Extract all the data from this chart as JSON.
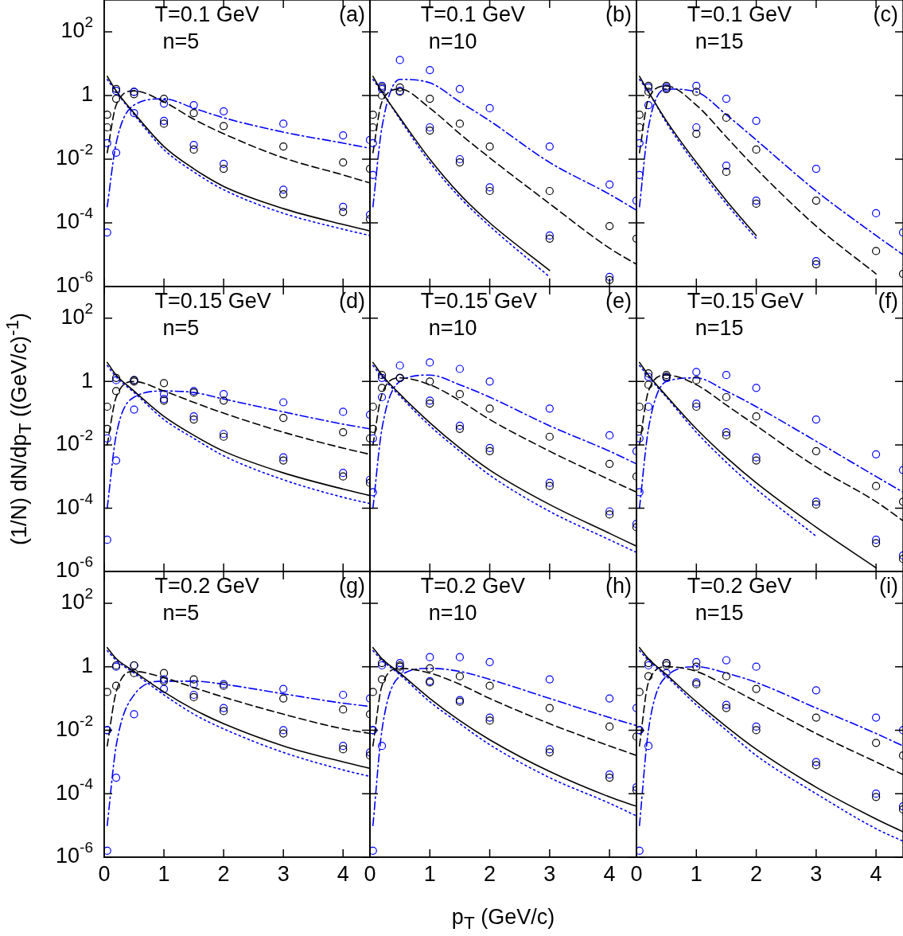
{
  "chart_data": [
    {
      "type": "line",
      "annotations": [
        "T=0.1 GeV",
        "(a)",
        "n=5"
      ],
      "x": [
        0.05,
        0.2,
        0.5,
        1,
        1.5,
        2,
        3,
        4,
        4.45
      ],
      "xlim": [
        0,
        4.45
      ],
      "xticks": [
        0,
        1,
        2,
        3,
        4
      ],
      "ylim": [
        1e-06,
        1000
      ],
      "yticks": [
        {
          "value": 1e-06,
          "label": "10$^{-6}$"
        },
        {
          "value": 0.0001,
          "label": "10$^{-4}$"
        },
        {
          "value": 0.01,
          "label": "10$^{-2}$"
        },
        {
          "value": 1,
          "label": "1"
        },
        {
          "value": 100,
          "label": "10$^{2}$"
        }
      ],
      "log": "y",
      "tick_labels": "y",
      "series": [
        {
          "type": "line",
          "color": "#000000",
          "line_style": "solid",
          "marker": "none",
          "values": [
            4,
            1.4,
            0.28,
            0.025,
            0.005,
            0.0014,
            0.00028,
            8.9e-05,
            5.6e-05
          ]
        },
        {
          "type": "line",
          "color": "#0000ff",
          "line_style": "dotted",
          "marker": "none",
          "values": [
            3.2,
            1.3,
            0.25,
            0.02,
            0.004,
            0.0011,
            0.0002,
            6.3e-05,
            4e-05
          ]
        },
        {
          "type": "scatter",
          "color": "#000000",
          "marker": "circle",
          "values": [
            0.25,
            1.6,
            1.1,
            0.13,
            0.02,
            0.005,
            0.00079,
            0.00022,
            0.00013
          ]
        },
        {
          "type": "scatter",
          "color": "#0000ff",
          "marker": "circle",
          "values": [
            0.032,
            1.4,
            1.3,
            0.16,
            0.028,
            0.0071,
            0.0011,
            0.00032,
            0.00018
          ]
        },
        {
          "type": "line",
          "color": "#000000",
          "line_style": "dashed",
          "marker": "none",
          "values": [
            0.016,
            0.5,
            1.4,
            0.63,
            0.18,
            0.063,
            0.011,
            0.0032,
            0.0018
          ]
        },
        {
          "type": "scatter",
          "color": "#000000",
          "marker": "circle",
          "values": [
            0.1,
            0.79,
            1.3,
            0.79,
            0.28,
            0.11,
            0.025,
            0.0079,
            0.005
          ]
        },
        {
          "type": "line",
          "color": "#0000ff",
          "line_style": "dashdot",
          "marker": "none",
          "values": [
            0.00032,
            0.032,
            0.5,
            0.79,
            0.4,
            0.2,
            0.071,
            0.032,
            0.022
          ]
        },
        {
          "type": "scatter",
          "color": "#0000ff",
          "marker": "circle",
          "values": [
            5e-05,
            0.016,
            0.28,
            0.56,
            0.5,
            0.32,
            0.13,
            0.056,
            0.04
          ]
        }
      ]
    },
    {
      "type": "line",
      "annotations": [
        "T=0.1 GeV",
        "(b)",
        "n=10"
      ],
      "x": [
        0.05,
        0.2,
        0.5,
        1,
        1.5,
        2,
        3,
        4,
        4.45
      ],
      "xlim": [
        0,
        4.45
      ],
      "xticks": [
        0,
        1,
        2,
        3,
        4
      ],
      "ylim": [
        1e-06,
        1000
      ],
      "yticks": [
        {
          "value": 1e-06,
          "label": null
        },
        {
          "value": 0.0001,
          "label": null
        },
        {
          "value": 0.01,
          "label": null
        },
        {
          "value": 1,
          "label": null
        },
        {
          "value": 100,
          "label": null
        }
      ],
      "log": "y",
      "tick_labels": false,
      "series": [
        {
          "type": "line",
          "color": "#000000",
          "line_style": "solid",
          "marker": "none",
          "values": [
            4,
            1.3,
            0.2,
            0.01,
            0.00079,
            0.0001,
            3.2e-06,
            null,
            null
          ]
        },
        {
          "type": "line",
          "color": "#0000ff",
          "line_style": "dotted",
          "marker": "none",
          "values": [
            3.2,
            1.3,
            0.18,
            0.0079,
            0.00063,
            7.9e-05,
            2e-06,
            null,
            null
          ]
        },
        {
          "type": "scatter",
          "color": "#000000",
          "marker": "circle",
          "values": [
            0.25,
            1.8,
            1.3,
            0.079,
            0.0079,
            0.001,
            3.2e-05,
            1.6e-06,
            null
          ]
        },
        {
          "type": "scatter",
          "color": "#0000ff",
          "marker": "circle",
          "values": [
            0.032,
            1.6,
            1.4,
            0.1,
            0.01,
            0.0013,
            4e-05,
            2e-06,
            null
          ]
        },
        {
          "type": "line",
          "color": "#000000",
          "line_style": "dashed",
          "marker": "none",
          "values": [
            0.016,
            0.63,
            1.6,
            0.4,
            0.063,
            0.011,
            0.0004,
            1.6e-05,
            5e-06
          ]
        },
        {
          "type": "scatter",
          "color": "#000000",
          "marker": "circle",
          "values": [
            0.1,
            1,
            1.8,
            0.79,
            0.13,
            0.025,
            0.001,
            7.9e-05,
            3.2e-05
          ]
        },
        {
          "type": "line",
          "color": "#0000ff",
          "line_style": "dashdot",
          "marker": "none",
          "values": [
            0.00032,
            0.1,
            3.2,
            2.5,
            0.63,
            0.16,
            0.0079,
            0.00079,
            0.00025
          ]
        },
        {
          "type": "scatter",
          "color": "#0000ff",
          "marker": "circle",
          "values": [
            0.0032,
            2,
            13,
            6.3,
            1.6,
            0.4,
            0.025,
            0.0016,
            0.0005
          ]
        }
      ]
    },
    {
      "type": "line",
      "annotations": [
        "T=0.1 GeV",
        "(c)",
        "n=15"
      ],
      "x": [
        0.05,
        0.2,
        0.5,
        1,
        1.5,
        2,
        3,
        4,
        4.45
      ],
      "xlim": [
        0,
        4.45
      ],
      "xticks": [
        0,
        1,
        2,
        3,
        4
      ],
      "ylim": [
        1e-06,
        1000
      ],
      "yticks": [
        {
          "value": 1e-06,
          "label": null
        },
        {
          "value": 0.0001,
          "label": null
        },
        {
          "value": 0.01,
          "label": null
        },
        {
          "value": 1,
          "label": null
        },
        {
          "value": 100,
          "label": null
        }
      ],
      "log": "y",
      "tick_labels": false,
      "series": [
        {
          "type": "line",
          "color": "#000000",
          "line_style": "solid",
          "marker": "none",
          "values": [
            4,
            1.3,
            0.16,
            0.0079,
            0.0005,
            4e-05,
            null,
            null,
            null
          ]
        },
        {
          "type": "line",
          "color": "#0000ff",
          "line_style": "dotted",
          "marker": "none",
          "values": [
            3.2,
            1.3,
            0.14,
            0.0063,
            0.0004,
            3.2e-05,
            null,
            null,
            null
          ]
        },
        {
          "type": "scatter",
          "color": "#000000",
          "marker": "circle",
          "values": [
            0.25,
            2,
            1.6,
            0.063,
            0.004,
            0.0004,
            5e-06,
            null,
            null
          ]
        },
        {
          "type": "scatter",
          "color": "#0000ff",
          "marker": "circle",
          "values": [
            0.032,
            1.8,
            1.8,
            0.1,
            0.0063,
            0.0005,
            6.3e-06,
            null,
            null
          ]
        },
        {
          "type": "line",
          "color": "#000000",
          "line_style": "dashed",
          "marker": "none",
          "values": [
            0.016,
            0.79,
            2,
            0.5,
            0.05,
            0.005,
            7.9e-05,
            2.5e-06,
            null
          ]
        },
        {
          "type": "scatter",
          "color": "#000000",
          "marker": "circle",
          "values": [
            0.1,
            1.3,
            2,
            1.3,
            0.2,
            0.02,
            0.0005,
            1.3e-05,
            2.5e-06
          ]
        },
        {
          "type": "line",
          "color": "#0000ff",
          "line_style": "dashdot",
          "marker": "none",
          "values": [
            0.00032,
            0.1,
            1.6,
            1.3,
            0.25,
            0.04,
            0.001,
            4e-05,
            1e-05
          ]
        },
        {
          "type": "scatter",
          "color": "#0000ff",
          "marker": "circle",
          "values": [
            0.0032,
            0.5,
            1.6,
            2,
            0.79,
            0.16,
            0.005,
            0.0002,
            5e-05
          ]
        }
      ]
    },
    {
      "type": "line",
      "annotations": [
        "T=0.15 GeV",
        "(d)",
        "n=5"
      ],
      "ylabel": "(1/N) dN/dp$_{T}$ ((GeV/c)$^{-1}$)",
      "x": [
        0.05,
        0.2,
        0.5,
        1,
        1.5,
        2,
        3,
        4,
        4.45
      ],
      "xlim": [
        0,
        4.45
      ],
      "xticks": [
        0,
        1,
        2,
        3,
        4
      ],
      "ylim": [
        1e-06,
        1000
      ],
      "yticks": [
        {
          "value": 1e-06,
          "label": "10$^{-6}$"
        },
        {
          "value": 0.0001,
          "label": "10$^{-4}$"
        },
        {
          "value": 0.01,
          "label": "10$^{-2}$"
        },
        {
          "value": 1,
          "label": "1"
        },
        {
          "value": 100,
          "label": "10$^{2}$"
        }
      ],
      "log": "y",
      "tick_labels": "y",
      "series": [
        {
          "type": "line",
          "color": "#000000",
          "line_style": "solid",
          "marker": "none",
          "values": [
            4,
            1.6,
            0.5,
            0.079,
            0.02,
            0.0063,
            0.0013,
            0.0004,
            0.00025
          ]
        },
        {
          "type": "line",
          "color": "#0000ff",
          "line_style": "dotted",
          "marker": "none",
          "values": [
            3.2,
            1.4,
            0.45,
            0.063,
            0.016,
            0.0045,
            0.00079,
            0.00022,
            0.00014
          ]
        },
        {
          "type": "scatter",
          "color": "#000000",
          "marker": "circle",
          "values": [
            0.16,
            1.3,
            1.1,
            0.25,
            0.063,
            0.018,
            0.0032,
            0.001,
            0.00063
          ]
        },
        {
          "type": "scatter",
          "color": "#0000ff",
          "marker": "circle",
          "values": [
            0.016,
            1.1,
            1.1,
            0.28,
            0.079,
            0.022,
            0.004,
            0.0013,
            0.00079
          ]
        },
        {
          "type": "line",
          "color": "#000000",
          "line_style": "dashed",
          "marker": "none",
          "values": [
            0.01,
            0.32,
            1,
            0.5,
            0.22,
            0.1,
            0.025,
            0.0079,
            0.005
          ]
        },
        {
          "type": "scatter",
          "color": "#000000",
          "marker": "circle",
          "values": [
            0.032,
            0.5,
            1,
            0.89,
            0.45,
            0.25,
            0.071,
            0.025,
            0.016
          ]
        },
        {
          "type": "line",
          "color": "#0000ff",
          "line_style": "dashdot",
          "marker": "none",
          "values": [
            0.0001,
            0.02,
            0.32,
            0.5,
            0.45,
            0.28,
            0.11,
            0.045,
            0.032
          ]
        },
        {
          "type": "scatter",
          "color": "#0000ff",
          "marker": "circle",
          "values": [
            1e-05,
            0.0032,
            0.13,
            0.4,
            0.5,
            0.4,
            0.22,
            0.11,
            0.089
          ]
        }
      ]
    },
    {
      "type": "line",
      "annotations": [
        "T=0.15 GeV",
        "(e)",
        "n=10"
      ],
      "x": [
        0.05,
        0.2,
        0.5,
        1,
        1.5,
        2,
        3,
        4,
        4.45
      ],
      "xlim": [
        0,
        4.45
      ],
      "xticks": [
        0,
        1,
        2,
        3,
        4
      ],
      "ylim": [
        1e-06,
        1000
      ],
      "yticks": [
        {
          "value": 1e-06,
          "label": null
        },
        {
          "value": 0.0001,
          "label": null
        },
        {
          "value": 0.01,
          "label": null
        },
        {
          "value": 1,
          "label": null
        },
        {
          "value": 100,
          "label": null
        }
      ],
      "log": "y",
      "tick_labels": false,
      "series": [
        {
          "type": "line",
          "color": "#000000",
          "line_style": "solid",
          "marker": "none",
          "values": [
            4,
            1.6,
            0.4,
            0.05,
            0.0079,
            0.0016,
            0.00013,
            1.6e-05,
            6.3e-06
          ]
        },
        {
          "type": "line",
          "color": "#0000ff",
          "line_style": "dotted",
          "marker": "none",
          "values": [
            3.2,
            1.4,
            0.35,
            0.04,
            0.0063,
            0.0011,
            7.9e-05,
            1e-05,
            4e-06
          ]
        },
        {
          "type": "scatter",
          "color": "#000000",
          "marker": "circle",
          "values": [
            0.16,
            1.6,
            1.3,
            0.2,
            0.032,
            0.0063,
            0.0005,
            6.3e-05,
            2.5e-05
          ]
        },
        {
          "type": "scatter",
          "color": "#0000ff",
          "marker": "circle",
          "values": [
            0.016,
            1.3,
            1.3,
            0.25,
            0.04,
            0.0079,
            0.00063,
            7.9e-05,
            3.2e-05
          ]
        },
        {
          "type": "line",
          "color": "#000000",
          "line_style": "dashed",
          "marker": "none",
          "values": [
            0.01,
            0.4,
            1.3,
            0.79,
            0.25,
            0.063,
            0.0063,
            0.00079,
            0.00032
          ]
        },
        {
          "type": "scatter",
          "color": "#000000",
          "marker": "circle",
          "values": [
            0.032,
            0.63,
            1.3,
            1,
            0.4,
            0.14,
            0.018,
            0.0025,
            0.001
          ]
        },
        {
          "type": "line",
          "color": "#0000ff",
          "line_style": "dashdot",
          "marker": "none",
          "values": [
            0.0001,
            0.032,
            1,
            1.6,
            0.79,
            0.32,
            0.04,
            0.0063,
            0.0025
          ]
        },
        {
          "type": "scatter",
          "color": "#0000ff",
          "marker": "circle",
          "values": [
            0.00032,
            0.32,
            3.2,
            4,
            2.5,
            1,
            0.14,
            0.02,
            0.0063
          ]
        }
      ]
    },
    {
      "type": "line",
      "annotations": [
        "T=0.15 GeV",
        "(f)",
        "n=15"
      ],
      "x": [
        0.05,
        0.2,
        0.5,
        1,
        1.5,
        2,
        3,
        4,
        4.45
      ],
      "xlim": [
        0,
        4.45
      ],
      "xticks": [
        0,
        1,
        2,
        3,
        4
      ],
      "ylim": [
        1e-06,
        1000
      ],
      "yticks": [
        {
          "value": 1e-06,
          "label": null
        },
        {
          "value": 0.0001,
          "label": null
        },
        {
          "value": 0.01,
          "label": null
        },
        {
          "value": 1,
          "label": null
        },
        {
          "value": 100,
          "label": null
        }
      ],
      "log": "y",
      "tick_labels": false,
      "series": [
        {
          "type": "line",
          "color": "#000000",
          "line_style": "solid",
          "marker": "none",
          "values": [
            4,
            1.6,
            0.35,
            0.032,
            0.004,
            0.00063,
            2.5e-05,
            1.3e-06,
            null
          ]
        },
        {
          "type": "line",
          "color": "#0000ff",
          "line_style": "dotted",
          "marker": "none",
          "values": [
            3.2,
            1.4,
            0.32,
            0.025,
            0.0028,
            0.0004,
            1.3e-05,
            null,
            null
          ]
        },
        {
          "type": "scatter",
          "color": "#000000",
          "marker": "circle",
          "values": [
            0.16,
            1.8,
            1.4,
            0.16,
            0.02,
            0.0032,
            0.00013,
            7.9e-06,
            2.5e-06
          ]
        },
        {
          "type": "scatter",
          "color": "#0000ff",
          "marker": "circle",
          "values": [
            0.016,
            1.4,
            1.4,
            0.2,
            0.025,
            0.004,
            0.00016,
            1e-05,
            3.2e-06
          ]
        },
        {
          "type": "line",
          "color": "#000000",
          "line_style": "dashed",
          "marker": "none",
          "values": [
            0.01,
            0.5,
            1.6,
            0.79,
            0.18,
            0.04,
            0.002,
            0.00016,
            4e-05
          ]
        },
        {
          "type": "scatter",
          "color": "#000000",
          "marker": "circle",
          "values": [
            0.032,
            0.79,
            1.6,
            1.1,
            0.32,
            0.079,
            0.0063,
            0.0005,
            0.00016
          ]
        },
        {
          "type": "line",
          "color": "#0000ff",
          "line_style": "dashdot",
          "marker": "none",
          "values": [
            0.0001,
            0.032,
            1,
            1.3,
            0.5,
            0.16,
            0.013,
            0.001,
            0.00032
          ]
        },
        {
          "type": "scatter",
          "color": "#0000ff",
          "marker": "circle",
          "values": [
            0.00032,
            0.16,
            1.3,
            2,
            1.6,
            0.63,
            0.063,
            0.005,
            0.0016
          ]
        }
      ]
    },
    {
      "type": "line",
      "annotations": [
        "T=0.2 GeV",
        "(g)",
        "n=5"
      ],
      "x": [
        0.05,
        0.2,
        0.5,
        1,
        1.5,
        2,
        3,
        4,
        4.45
      ],
      "xlim": [
        0,
        4.45
      ],
      "xticks": [
        0,
        1,
        2,
        3,
        4
      ],
      "ylim": [
        1e-06,
        1000
      ],
      "yticks": [
        {
          "value": 1e-06,
          "label": "10$^{-6}$"
        },
        {
          "value": 0.0001,
          "label": "10$^{-4}$"
        },
        {
          "value": 0.01,
          "label": "10$^{-2}$"
        },
        {
          "value": 1,
          "label": "1"
        },
        {
          "value": 100,
          "label": "10$^{2}$"
        }
      ],
      "log": "y",
      "series": [
        {
          "type": "line",
          "color": "#000000",
          "line_style": "solid",
          "marker": "none",
          "values": [
            4,
            1.8,
            0.71,
            0.16,
            0.045,
            0.016,
            0.0032,
            0.001,
            0.00063
          ]
        },
        {
          "type": "line",
          "color": "#0000ff",
          "line_style": "dotted",
          "marker": "none",
          "values": [
            3.2,
            1.6,
            0.63,
            0.13,
            0.032,
            0.011,
            0.002,
            0.00056,
            0.00035
          ]
        },
        {
          "type": "scatter",
          "color": "#000000",
          "marker": "circle",
          "values": [
            0.16,
            1.1,
            1.1,
            0.35,
            0.11,
            0.04,
            0.0079,
            0.0025,
            0.0016
          ]
        },
        {
          "type": "scatter",
          "color": "#0000ff",
          "marker": "circle",
          "values": [
            0.01,
            1,
            1.1,
            0.4,
            0.13,
            0.05,
            0.01,
            0.0032,
            0.002
          ]
        },
        {
          "type": "line",
          "color": "#000000",
          "line_style": "dashed",
          "marker": "none",
          "values": [
            0.0032,
            0.16,
            0.71,
            0.45,
            0.22,
            0.11,
            0.032,
            0.011,
            0.0079
          ]
        },
        {
          "type": "scatter",
          "color": "#000000",
          "marker": "circle",
          "values": [
            0.01,
            0.25,
            0.63,
            0.63,
            0.4,
            0.25,
            0.1,
            0.045,
            0.032
          ]
        },
        {
          "type": "line",
          "color": "#0000ff",
          "line_style": "dashdot",
          "marker": "none",
          "values": [
            1e-05,
            0.0032,
            0.13,
            0.35,
            0.35,
            0.28,
            0.14,
            0.071,
            0.056
          ]
        },
        {
          "type": "scatter",
          "color": "#0000ff",
          "marker": "circle",
          "values": [
            1.6e-06,
            0.00032,
            0.032,
            0.2,
            0.28,
            0.28,
            0.2,
            0.13,
            0.1
          ]
        }
      ]
    },
    {
      "type": "line",
      "annotations": [
        "T=0.2 GeV",
        "(h)",
        "n=10"
      ],
      "xlabel": "p$_{T}$ (GeV/c)",
      "x": [
        0.05,
        0.2,
        0.5,
        1,
        1.5,
        2,
        3,
        4,
        4.45
      ],
      "xlim": [
        0,
        4.45
      ],
      "xticks": [
        0,
        1,
        2,
        3,
        4
      ],
      "ylim": [
        1e-06,
        1000
      ],
      "yticks": [
        {
          "value": 1e-06,
          "label": null
        },
        {
          "value": 0.0001,
          "label": null
        },
        {
          "value": 0.01,
          "label": null
        },
        {
          "value": 1,
          "label": null
        },
        {
          "value": 100,
          "label": null
        }
      ],
      "log": "y",
      "tick_labels": "x",
      "series": [
        {
          "type": "line",
          "color": "#000000",
          "line_style": "solid",
          "marker": "none",
          "values": [
            4,
            1.8,
            0.63,
            0.1,
            0.02,
            0.005,
            0.0005,
            7.9e-05,
            4e-05
          ]
        },
        {
          "type": "line",
          "color": "#0000ff",
          "line_style": "dotted",
          "marker": "none",
          "values": [
            3.2,
            1.6,
            0.56,
            0.079,
            0.016,
            0.0035,
            0.00032,
            5e-05,
            2e-05
          ]
        },
        {
          "type": "scatter",
          "color": "#000000",
          "marker": "circle",
          "values": [
            0.16,
            1.3,
            1.1,
            0.32,
            0.079,
            0.02,
            0.002,
            0.00032,
            0.00013
          ]
        },
        {
          "type": "scatter",
          "color": "#0000ff",
          "marker": "circle",
          "values": [
            0.01,
            1.1,
            1.3,
            0.35,
            0.089,
            0.025,
            0.0025,
            0.0004,
            0.00016
          ]
        },
        {
          "type": "line",
          "color": "#000000",
          "line_style": "dashed",
          "marker": "none",
          "values": [
            0.0032,
            0.25,
            0.89,
            0.63,
            0.28,
            0.1,
            0.016,
            0.0032,
            0.0016
          ]
        },
        {
          "type": "scatter",
          "color": "#000000",
          "marker": "circle",
          "values": [
            0.01,
            0.4,
            1,
            0.89,
            0.5,
            0.25,
            0.05,
            0.013,
            0.0063
          ]
        },
        {
          "type": "line",
          "color": "#0000ff",
          "line_style": "dashdot",
          "marker": "none",
          "values": [
            1e-05,
            0.01,
            0.5,
            0.89,
            0.71,
            0.4,
            0.1,
            0.025,
            0.014
          ]
        },
        {
          "type": "scatter",
          "color": "#0000ff",
          "marker": "circle",
          "values": [
            1.6e-06,
            0.0032,
            0.79,
            2,
            2,
            1.4,
            0.4,
            0.1,
            0.05
          ]
        }
      ]
    },
    {
      "type": "line",
      "annotations": [
        "T=0.2 GeV",
        "(i)",
        "n=15"
      ],
      "x": [
        0.05,
        0.2,
        0.5,
        1,
        1.5,
        2,
        3,
        4,
        4.45
      ],
      "xlim": [
        0,
        4.45
      ],
      "xticks": [
        0,
        1,
        2,
        3,
        4
      ],
      "ylim": [
        1e-06,
        1000
      ],
      "yticks": [
        {
          "value": 1e-06,
          "label": null
        },
        {
          "value": 0.0001,
          "label": null
        },
        {
          "value": 0.01,
          "label": null
        },
        {
          "value": 1,
          "label": null
        },
        {
          "value": 100,
          "label": null
        }
      ],
      "log": "y",
      "tick_labels": "x",
      "series": [
        {
          "type": "line",
          "color": "#000000",
          "line_style": "solid",
          "marker": "none",
          "values": [
            4,
            1.8,
            0.56,
            0.079,
            0.013,
            0.0025,
            0.00016,
            1.6e-05,
            6.3e-06
          ]
        },
        {
          "type": "line",
          "color": "#0000ff",
          "line_style": "dotted",
          "marker": "none",
          "values": [
            3.2,
            1.6,
            0.5,
            0.063,
            0.01,
            0.0016,
            0.0001,
            7.9e-06,
            3.2e-06
          ]
        },
        {
          "type": "scatter",
          "color": "#000000",
          "marker": "circle",
          "values": [
            0.16,
            1.3,
            1.3,
            0.28,
            0.05,
            0.01,
            0.00079,
            7.9e-05,
            3.2e-05
          ]
        },
        {
          "type": "scatter",
          "color": "#0000ff",
          "marker": "circle",
          "values": [
            0.01,
            1.1,
            1.3,
            0.32,
            0.063,
            0.013,
            0.001,
            0.0001,
            4e-05
          ]
        },
        {
          "type": "line",
          "color": "#000000",
          "line_style": "dashed",
          "marker": "none",
          "values": [
            0.0032,
            0.32,
            1,
            0.71,
            0.25,
            0.079,
            0.0079,
            0.001,
            0.0004
          ]
        },
        {
          "type": "scatter",
          "color": "#000000",
          "marker": "circle",
          "values": [
            0.01,
            0.5,
            1.1,
            1,
            0.5,
            0.2,
            0.025,
            0.004,
            0.0016
          ]
        },
        {
          "type": "line",
          "color": "#0000ff",
          "line_style": "dashdot",
          "marker": "none",
          "values": [
            1e-05,
            0.01,
            0.5,
            1,
            0.63,
            0.32,
            0.05,
            0.0079,
            0.0032
          ]
        },
        {
          "type": "scatter",
          "color": "#0000ff",
          "marker": "circle",
          "values": [
            1.6e-06,
            0.0032,
            0.63,
            1.4,
            1.6,
            1,
            0.18,
            0.025,
            0.01
          ]
        }
      ]
    }
  ]
}
